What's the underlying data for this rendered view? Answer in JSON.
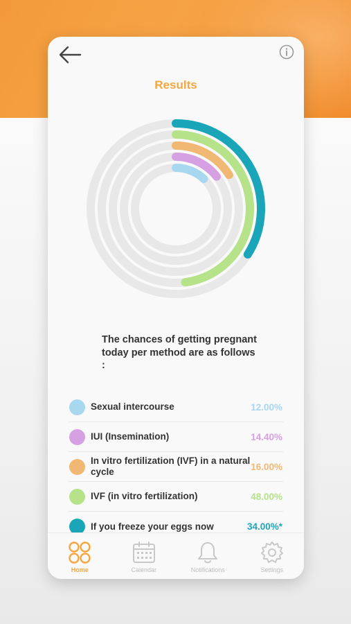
{
  "header": {
    "title": "Results"
  },
  "intro_text": "The chances of getting pregnant today per method are as follows :",
  "methods": [
    {
      "label": "Sexual intercourse",
      "value": "12.00%",
      "percent": 12,
      "color": "#a7d8f0"
    },
    {
      "label": "IUI (Insemination)",
      "value": "14.40%",
      "percent": 14.4,
      "color": "#d6a1e2"
    },
    {
      "label": "In vitro fertilization (IVF) in a natural cycle",
      "value": "16.00%",
      "percent": 16,
      "color": "#f1b874"
    },
    {
      "label": "IVF (in vitro fertilization)",
      "value": "48.00%",
      "percent": 48,
      "color": "#b6e28a"
    },
    {
      "label": "If you freeze your eggs now",
      "value": "34.00%*",
      "percent": 34,
      "color": "#1aa6b8"
    }
  ],
  "tabs": [
    {
      "label": "Home",
      "icon": "home-circles-icon",
      "active": true
    },
    {
      "label": "Calendar",
      "icon": "calendar-icon",
      "active": false
    },
    {
      "label": "Notifications",
      "icon": "bell-icon",
      "active": false
    },
    {
      "label": "Settings",
      "icon": "gear-icon",
      "active": false
    }
  ],
  "colors": {
    "accent": "#f4a640",
    "track": "#e8e8e8"
  }
}
